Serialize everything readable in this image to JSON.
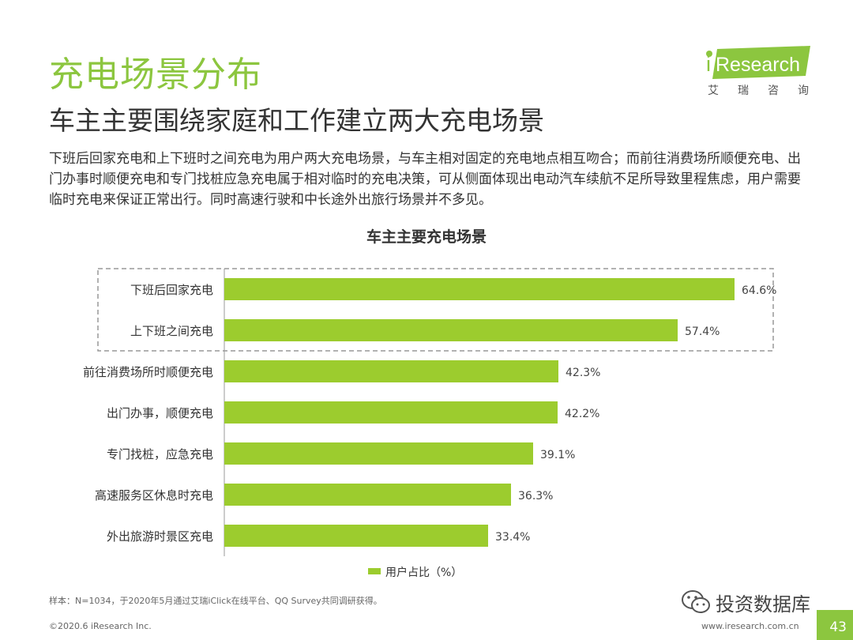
{
  "header": {
    "title": "充电场景分布",
    "subtitle": "车主主要围绕家庭和工作建立两大充电场景",
    "description": "下班后回家充电和上下班时之间充电为用户两大充电场景，与车主相对固定的充电地点相互吻合；而前往消费场所顺便充电、出门办事时顺便充电和专门找桩应急充电属于相对临时的充电决策，可从侧面体现出电动汽车续航不足所导致里程焦虑，用户需要临时充电来保证正常出行。同时高速行驶和中长途外出旅行场景并不多见。"
  },
  "logo": {
    "brand": "iResearch",
    "cn_chars": [
      "艾",
      "瑞",
      "咨",
      "询"
    ]
  },
  "chart_data": {
    "type": "bar",
    "orientation": "horizontal",
    "title": "车主主要充电场景",
    "categories": [
      "下班后回家充电",
      "上下班之间充电",
      "前往消费场所时顺便充电",
      "出门办事，顺便充电",
      "专门找桩，应急充电",
      "高速服务区休息时充电",
      "外出旅游时景区充电"
    ],
    "values": [
      64.6,
      57.4,
      42.3,
      42.2,
      39.1,
      36.3,
      33.4
    ],
    "value_labels": [
      "64.6%",
      "57.4%",
      "42.3%",
      "42.2%",
      "39.1%",
      "36.3%",
      "33.4%"
    ],
    "legend": "用户占比（%）",
    "legend_position": "bottom",
    "highlight_top_n": 2,
    "xlim": [
      0,
      70
    ],
    "grid": false,
    "bar_color": "#9ccc2e"
  },
  "footer": {
    "note": "样本：N=1034，于2020年5月通过艾瑞iClick在线平台、QQ Survey共同调研获得。",
    "copyright": "©2020.6 iResearch Inc.",
    "url": "www.iresearch.com.cn",
    "page": "43",
    "watermark": "投资数据库"
  },
  "colors": {
    "accent": "#8cc63f",
    "bar": "#9ccc2e",
    "text": "#333333"
  }
}
